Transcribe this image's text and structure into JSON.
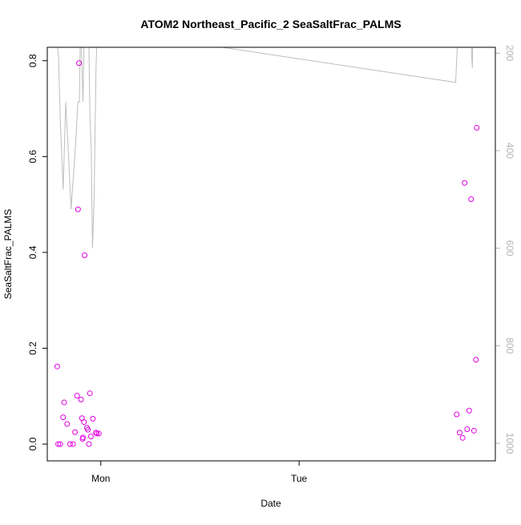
{
  "chart_data": {
    "type": "scatter",
    "title": "ATOM2 Northeast_Pacific_2 SeaSaltFrac_PALMS",
    "xlabel": "Date",
    "ylabel": "SeaSaltFrac_PALMS",
    "x_tick_labels": [
      "Mon",
      "Tue"
    ],
    "x_tick_positions": [
      1.0,
      2.0
    ],
    "xlim": [
      0.73,
      2.99
    ],
    "ylim": [
      -0.035,
      0.828
    ],
    "y_ticks": [
      0.0,
      0.2,
      0.4,
      0.6,
      0.8
    ],
    "y2_ticks": [
      200,
      400,
      600,
      800,
      1000
    ],
    "y2lim": [
      1036,
      188
    ],
    "point_color": "#e000e0",
    "line_color": "#bdbdbd",
    "axis_color": "#000000",
    "y2_axis_color": "#b3b3b3",
    "series": [
      {
        "type": "points",
        "x": [
          0.78,
          0.785,
          0.795,
          0.81,
          0.815,
          0.83,
          0.845,
          0.86,
          0.87,
          0.88,
          0.885,
          0.89,
          0.9,
          0.905,
          0.908,
          0.91,
          0.915,
          0.918,
          0.93,
          0.935,
          0.94,
          0.945,
          0.95,
          0.96,
          0.975,
          0.98,
          0.99,
          2.795,
          2.81,
          2.825,
          2.835,
          2.848,
          2.858,
          2.868,
          2.882,
          2.892,
          2.896
        ],
        "y": [
          0.162,
          0.0,
          0.0,
          0.056,
          0.087,
          0.042,
          0.0,
          0.0,
          0.025,
          0.101,
          0.49,
          0.795,
          0.093,
          0.054,
          0.011,
          0.014,
          0.046,
          0.394,
          0.034,
          0.03,
          0.0,
          0.106,
          0.016,
          0.053,
          0.024,
          0.022,
          0.022,
          0.062,
          0.024,
          0.013,
          0.545,
          0.031,
          0.07,
          0.511,
          0.028,
          0.176,
          0.66
        ]
      },
      {
        "type": "line",
        "axis": "secondary",
        "x": [
          0.78,
          0.786,
          0.795,
          0.81,
          0.823,
          0.836,
          0.85,
          0.862,
          0.874,
          0.884,
          0.892,
          0.896,
          0.902,
          0.91,
          0.915,
          0.92,
          0.925,
          0.93,
          0.935,
          0.94,
          0.945,
          0.952,
          0.958,
          0.966,
          0.976,
          0.981,
          0.988,
          0.992,
          2.79,
          2.8,
          2.812,
          2.82,
          2.83,
          2.84,
          2.846,
          2.852,
          2.858,
          2.864,
          2.87,
          2.874,
          2.877,
          2.88,
          2.886,
          2.892,
          2.898
        ],
        "y": [
          185,
          200,
          330,
          480,
          300,
          400,
          520,
          450,
          380,
          300,
          300,
          180,
          185,
          300,
          185,
          180,
          180,
          185,
          180,
          185,
          330,
          400,
          600,
          500,
          230,
          160,
          150,
          150,
          260,
          170,
          130,
          100,
          120,
          140,
          150,
          100,
          80,
          60,
          200,
          230,
          140,
          120,
          140,
          150,
          150
        ]
      }
    ]
  }
}
